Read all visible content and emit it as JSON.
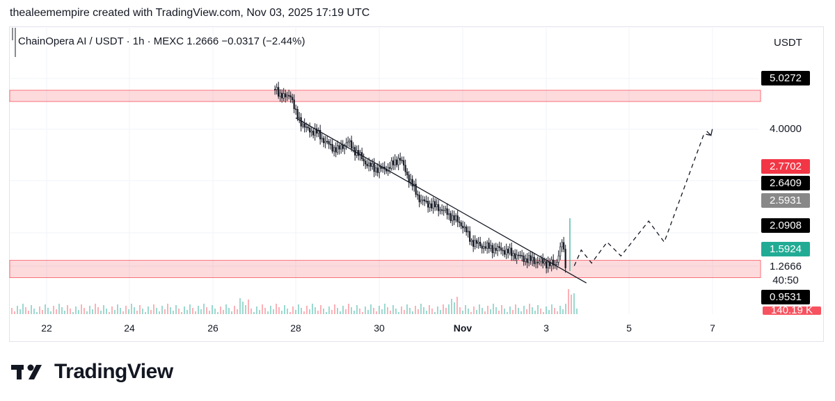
{
  "header": {
    "text": "thealeemempire created with TradingView.com, Nov 03, 2025 17:19 UTC"
  },
  "symbol_line": "ChainOpera AI / USDT · 1h · MEXC  1.2666  −0.0317 (−2.44%)",
  "currency": "USDT",
  "price_tags": [
    {
      "label": "5.0272",
      "bg": "#000000",
      "fg": "#ffffff"
    },
    {
      "label": "4.0000",
      "bg": "transparent",
      "fg": "#131722"
    },
    {
      "label": "2.7702",
      "bg": "#f23645",
      "fg": "#ffffff"
    },
    {
      "label": "2.6409",
      "bg": "#000000",
      "fg": "#ffffff"
    },
    {
      "label": "2.5931",
      "bg": "#888888",
      "fg": "#ffffff"
    },
    {
      "label": "2.0908",
      "bg": "#000000",
      "fg": "#ffffff"
    },
    {
      "label": "1.5924",
      "bg": "#22ab94",
      "fg": "#ffffff"
    },
    {
      "label": "1.2666",
      "bg": "transparent",
      "fg": "#131722"
    },
    {
      "label": "40:50",
      "bg": "transparent",
      "fg": "#131722"
    },
    {
      "label": "0.9531",
      "bg": "#000000",
      "fg": "#ffffff"
    },
    {
      "label": "140.19 K",
      "bg": "#f7525f",
      "fg": "#ffffff"
    }
  ],
  "chart_data": {
    "type": "line",
    "title": "ChainOpera AI / USDT · 1h · MEXC",
    "x_tick_labels": [
      "22",
      "24",
      "26",
      "28",
      "30",
      "Nov",
      "3",
      "5",
      "7"
    ],
    "y_tick_labels": [
      "5.0272",
      "4.0000",
      "2.7702",
      "2.6409",
      "2.5931",
      "2.0908",
      "1.5924",
      "1.2666",
      "0.9531"
    ],
    "series": [
      {
        "name": "ChainOpera AI / USDT",
        "points": [
          [
            "Oct 27 12:00",
            5.6
          ],
          [
            "Oct 27 18:00",
            5.2
          ],
          [
            "Oct 27 21:00",
            5.4
          ],
          [
            "Oct 28 00:00",
            4.55
          ],
          [
            "Oct 28 06:00",
            4.0
          ],
          [
            "Oct 28 12:00",
            3.9
          ],
          [
            "Oct 28 18:00",
            3.55
          ],
          [
            "Oct 29 00:00",
            3.35
          ],
          [
            "Oct 29 06:00",
            3.6
          ],
          [
            "Oct 29 12:00",
            3.25
          ],
          [
            "Oct 29 18:00",
            2.95
          ],
          [
            "Oct 30 00:00",
            2.85
          ],
          [
            "Oct 30 06:00",
            2.9
          ],
          [
            "Oct 30 12:00",
            3.15
          ],
          [
            "Oct 30 18:00",
            2.6
          ],
          [
            "Oct 31 00:00",
            2.2
          ],
          [
            "Oct 31 12:00",
            2.05
          ],
          [
            "Nov 1 00:00",
            1.8
          ],
          [
            "Nov 1 06:00",
            1.55
          ],
          [
            "Nov 1 12:00",
            1.5
          ],
          [
            "Nov 1 18:00",
            1.47
          ],
          [
            "Nov 2 00:00",
            1.45
          ],
          [
            "Nov 2 12:00",
            1.35
          ],
          [
            "Nov 3 00:00",
            1.3
          ],
          [
            "Nov 3 06:00",
            1.28
          ],
          [
            "Nov 3 10:00",
            1.55
          ],
          [
            "Nov 3 12:00",
            1.27
          ]
        ]
      },
      {
        "name": "Projected path",
        "points": [
          [
            "Nov 3 17:00",
            1.27
          ],
          [
            "Nov 3 21:00",
            1.45
          ],
          [
            "Nov 4 03:00",
            1.3
          ],
          [
            "Nov 4 12:00",
            1.55
          ],
          [
            "Nov 4 20:00",
            1.38
          ],
          [
            "Nov 5 12:00",
            1.85
          ],
          [
            "Nov 5 21:00",
            1.55
          ],
          [
            "Nov 6 20:00",
            3.85
          ],
          [
            "Nov 7 00:00",
            3.8
          ]
        ]
      }
    ],
    "trendline": {
      "from": [
        "Oct 28 00:00",
        4.4
      ],
      "to": [
        "Nov 4 00:00",
        1.1
      ]
    },
    "zones": [
      {
        "label": "resistance",
        "from": 5.55,
        "to": 5.05,
        "color": "#f23645"
      },
      {
        "label": "support",
        "from": 1.33,
        "to": 1.15,
        "color": "#f23645"
      }
    ],
    "volume": "bars along bottom, peak near Nov 3"
  },
  "logo": {
    "text": "TradingView"
  }
}
